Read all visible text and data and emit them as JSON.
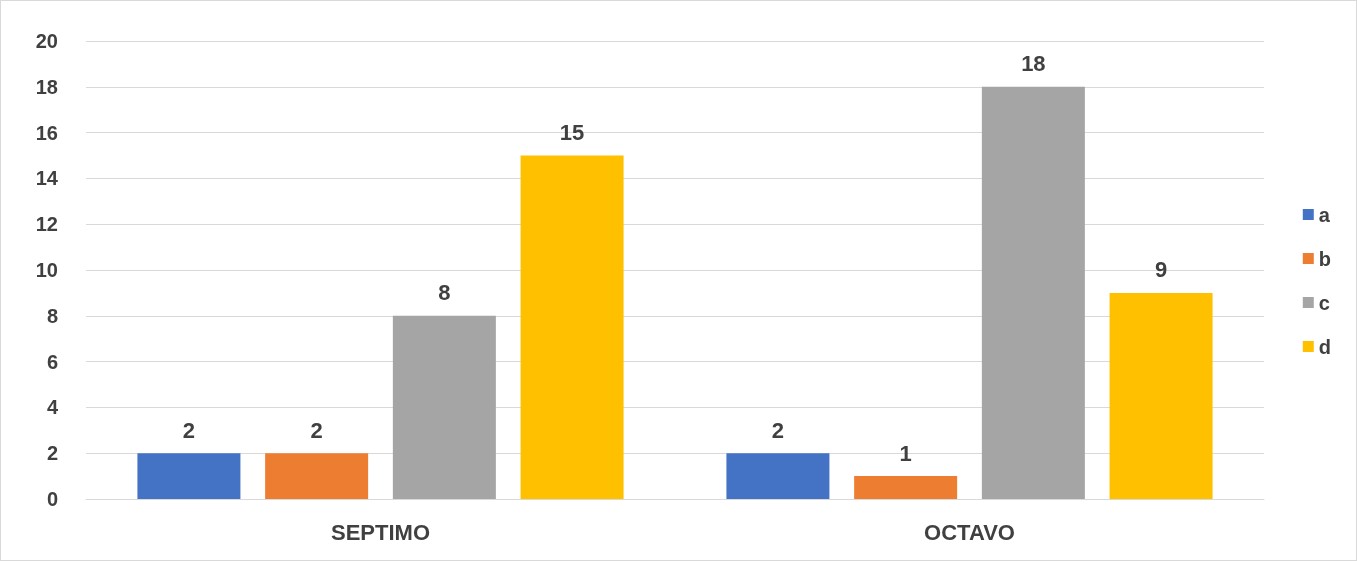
{
  "chart_data": {
    "type": "bar",
    "categories": [
      "SEPTIMO",
      "OCTAVO"
    ],
    "series": [
      {
        "name": "a",
        "color": "#4472c4",
        "values": [
          2,
          2
        ]
      },
      {
        "name": "b",
        "color": "#ed7d31",
        "values": [
          2,
          1
        ]
      },
      {
        "name": "c",
        "color": "#a5a5a5",
        "values": [
          8,
          18
        ]
      },
      {
        "name": "d",
        "color": "#ffc000",
        "values": [
          15,
          9
        ]
      }
    ],
    "ylim": [
      0,
      20
    ],
    "yticks": [
      0,
      2,
      4,
      6,
      8,
      10,
      12,
      14,
      16,
      18,
      20
    ],
    "grid": "y",
    "legend": "right",
    "data_labels": true
  }
}
